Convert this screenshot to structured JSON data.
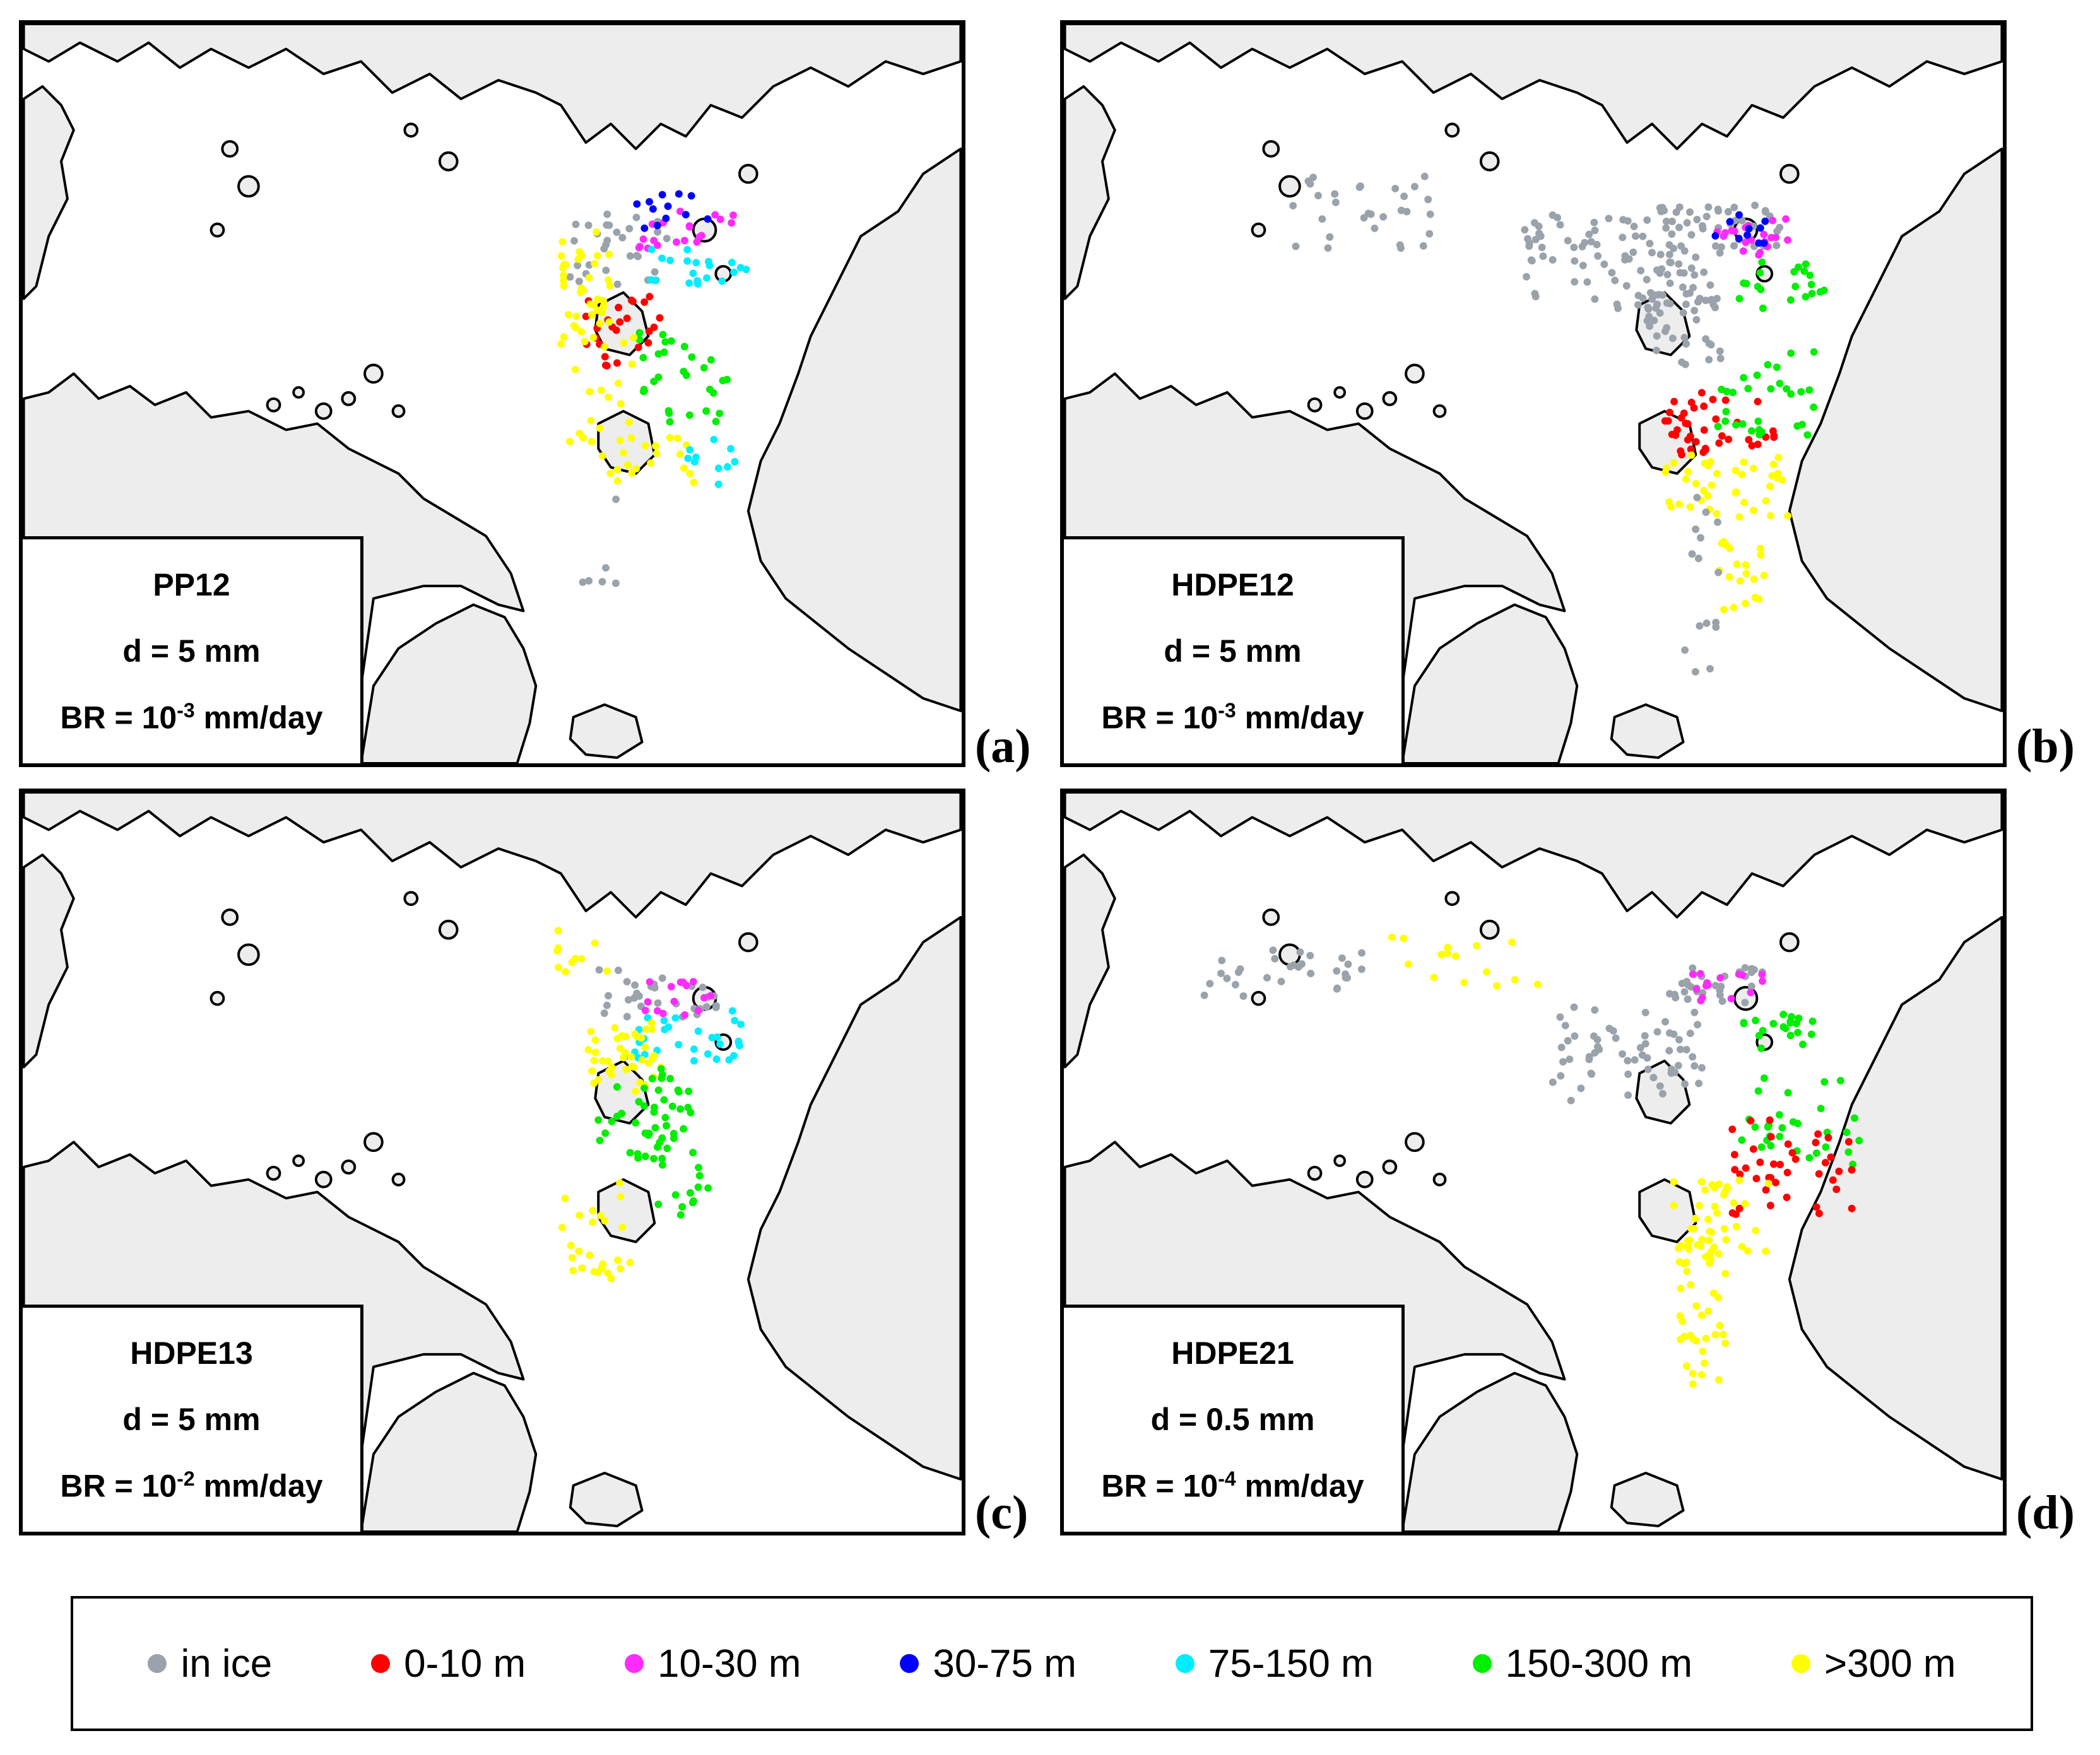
{
  "colors": {
    "in_ice": "#9aa3ab",
    "d0_10": "#ff0000",
    "d10_30": "#ff2bff",
    "d30_75": "#0000ff",
    "d75_150": "#00eeff",
    "d150_300": "#00ee00",
    "d_gt300": "#ffff00",
    "land": "#ededed",
    "coast": "#000000"
  },
  "panels": [
    {
      "letter": "(a)",
      "name": "PP12",
      "diameter": "d = 5 mm",
      "br_prefix": "BR = 10",
      "br_exp": "-3",
      "br_suffix": " mm/day"
    },
    {
      "letter": "(b)",
      "name": "HDPE12",
      "diameter": "d = 5 mm",
      "br_prefix": "BR = 10",
      "br_exp": "-3",
      "br_suffix": " mm/day"
    },
    {
      "letter": "(c)",
      "name": "HDPE13",
      "diameter": "d = 5 mm",
      "br_prefix": "BR = 10",
      "br_exp": "-2",
      "br_suffix": " mm/day"
    },
    {
      "letter": "(d)",
      "name": "HDPE21",
      "diameter": "d = 0.5 mm",
      "br_prefix": "BR = 10",
      "br_exp": "-4",
      "br_suffix": " mm/day"
    }
  ],
  "legend": [
    {
      "label": "in ice",
      "icon": "gray-dot",
      "color": "#9aa3ab"
    },
    {
      "label": "0-10 m",
      "icon": "red-dot",
      "color": "#ff0000"
    },
    {
      "label": "10-30 m",
      "icon": "magenta-dot",
      "color": "#ff2bff"
    },
    {
      "label": "30-75 m",
      "icon": "blue-dot",
      "color": "#0000ff"
    },
    {
      "label": "75-150 m",
      "icon": "cyan-dot",
      "color": "#00eeff"
    },
    {
      "label": "150-300 m",
      "icon": "green-dot",
      "color": "#00ee00"
    },
    {
      "label": ">300 m",
      "icon": "yellow-dot",
      "color": "#ffff00"
    }
  ]
}
